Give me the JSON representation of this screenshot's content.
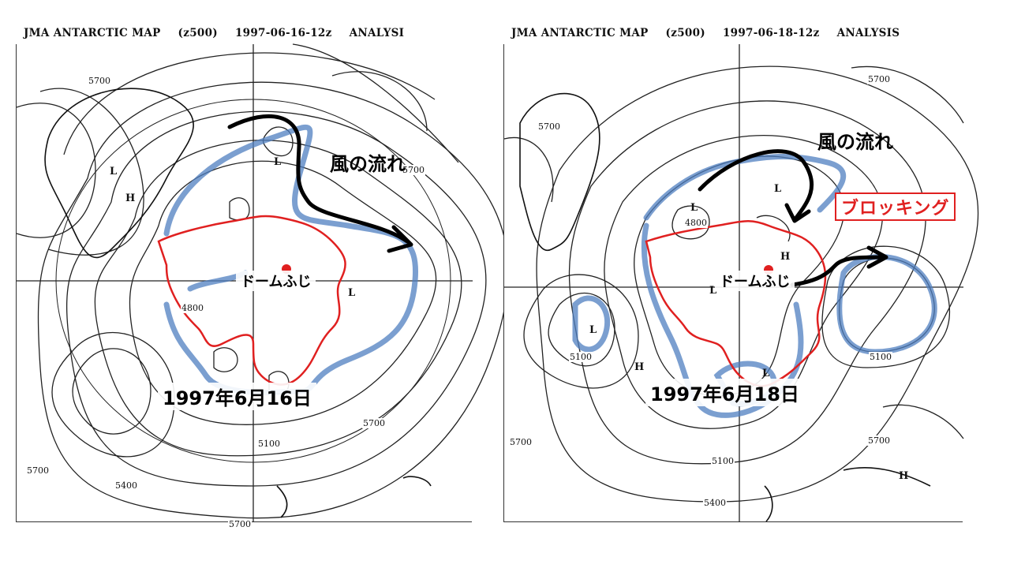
{
  "left_map": {
    "header": {
      "title": "JMA ANTARCTIC MAP",
      "level": "(z500)",
      "datetime": "1997-06-16-12z",
      "type": "ANALYSI"
    },
    "date_label": "1997年6月16日",
    "station_label": "ドームふじ",
    "wind_label": "風の流れ",
    "contour_labels": [
      "5700",
      "5700",
      "5700",
      "5700",
      "5400",
      "5100",
      "5700",
      "4800"
    ],
    "pressure_marks": [
      "L",
      "H",
      "L",
      "L"
    ]
  },
  "right_map": {
    "header": {
      "title": "JMA ANTARCTIC MAP",
      "level": "(z500)",
      "datetime": "1997-06-18-12z",
      "type": "ANALYSIS"
    },
    "date_label": "1997年6月18日",
    "station_label": "ドームふじ",
    "wind_label": "風の流れ",
    "blocking_label": "ブロッキング",
    "contour_labels": [
      "5700",
      "5700",
      "5100",
      "5100",
      "5100",
      "5700",
      "5400",
      "5700",
      "4800"
    ],
    "pressure_marks": [
      "L",
      "L",
      "L",
      "H",
      "L",
      "L",
      "H",
      "H"
    ]
  },
  "colors": {
    "antarctica_outline": "#e02020",
    "station_dot": "#e02020",
    "jet_shading": "#4f7fc0",
    "wind_arrow": "#000000",
    "contours": "#222222"
  }
}
